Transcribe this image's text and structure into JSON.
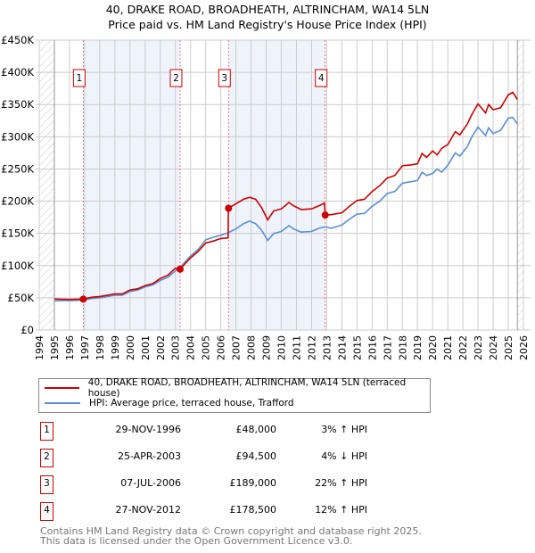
{
  "chart_data": {
    "type": "line",
    "title": "40, DRAKE ROAD, BROADHEATH, ALTRINCHAM, WA14 5LN",
    "subtitle": "Price paid vs. HM Land Registry's House Price Index (HPI)",
    "xlim": [
      1994,
      2026
    ],
    "ylim": [
      0,
      450000
    ],
    "y_ticks": [
      {
        "v": 0,
        "label": "£0"
      },
      {
        "v": 50000,
        "label": "£50K"
      },
      {
        "v": 100000,
        "label": "£100K"
      },
      {
        "v": 150000,
        "label": "£150K"
      },
      {
        "v": 200000,
        "label": "£200K"
      },
      {
        "v": 250000,
        "label": "£250K"
      },
      {
        "v": 300000,
        "label": "£300K"
      },
      {
        "v": 350000,
        "label": "£350K"
      },
      {
        "v": 400000,
        "label": "£400K"
      },
      {
        "v": 450000,
        "label": "£450K"
      }
    ],
    "x_ticks": [
      "1994",
      "1995",
      "1996",
      "1997",
      "1998",
      "1999",
      "2000",
      "2001",
      "2002",
      "2003",
      "2004",
      "2005",
      "2006",
      "2007",
      "2008",
      "2009",
      "2010",
      "2011",
      "2012",
      "2013",
      "2014",
      "2015",
      "2016",
      "2017",
      "2018",
      "2019",
      "2020",
      "2021",
      "2022",
      "2023",
      "2024",
      "2025",
      "2026"
    ],
    "grid": true,
    "colors": {
      "property": "#cc0000",
      "hpi": "#5b8fd4",
      "band": "#eef3fc",
      "marker": "#cc0000"
    },
    "series": [
      {
        "name": "40, DRAKE ROAD, BROADHEATH, ALTRINCHAM, WA14 5LN (terraced house)",
        "unit": "£K",
        "points": [
          [
            1995,
            48
          ],
          [
            1996,
            47.5
          ],
          [
            1996.9,
            48
          ],
          [
            1997.5,
            51
          ],
          [
            1998,
            52
          ],
          [
            1998.5,
            54
          ],
          [
            1999,
            56
          ],
          [
            1999.5,
            56
          ],
          [
            2000,
            62
          ],
          [
            2000.5,
            64
          ],
          [
            2001,
            69
          ],
          [
            2001.5,
            72
          ],
          [
            2002,
            80
          ],
          [
            2002.5,
            85
          ],
          [
            2003,
            96
          ],
          [
            2003.3,
            94.5
          ],
          [
            2004,
            112
          ],
          [
            2004.5,
            122
          ],
          [
            2005,
            135
          ],
          [
            2005.5,
            138
          ],
          [
            2006,
            142
          ],
          [
            2006.48,
            143
          ],
          [
            2006.5,
            189
          ],
          [
            2007,
            196
          ],
          [
            2007.5,
            203
          ],
          [
            2007.9,
            206
          ],
          [
            2008.3,
            203
          ],
          [
            2008.7,
            190
          ],
          [
            2009.1,
            171
          ],
          [
            2009.5,
            185
          ],
          [
            2010,
            188
          ],
          [
            2010.5,
            198
          ],
          [
            2010.8,
            193
          ],
          [
            2011.3,
            187
          ],
          [
            2012,
            188
          ],
          [
            2012.5,
            193
          ],
          [
            2012.85,
            197
          ],
          [
            2012.9,
            178.5
          ],
          [
            2013.3,
            179
          ],
          [
            2014,
            182
          ],
          [
            2014.5,
            192
          ],
          [
            2015,
            201
          ],
          [
            2015.5,
            203
          ],
          [
            2016,
            215
          ],
          [
            2016.5,
            224
          ],
          [
            2017,
            236
          ],
          [
            2017.5,
            240
          ],
          [
            2018,
            255
          ],
          [
            2018.5,
            256
          ],
          [
            2019,
            258
          ],
          [
            2019.3,
            274
          ],
          [
            2019.6,
            268
          ],
          [
            2020,
            278
          ],
          [
            2020.3,
            272
          ],
          [
            2020.6,
            282
          ],
          [
            2021,
            288
          ],
          [
            2021.5,
            308
          ],
          [
            2021.8,
            303
          ],
          [
            2022.3,
            320
          ],
          [
            2022.6,
            335
          ],
          [
            2023,
            351
          ],
          [
            2023.5,
            337
          ],
          [
            2023.7,
            350
          ],
          [
            2024,
            342
          ],
          [
            2024.5,
            345
          ],
          [
            2025,
            365
          ],
          [
            2025.3,
            369
          ],
          [
            2025.6,
            358
          ]
        ]
      },
      {
        "name": "HPI: Average price, terraced house, Trafford",
        "unit": "£K",
        "points": [
          [
            1995,
            45
          ],
          [
            1995.5,
            46
          ],
          [
            1996,
            45.5
          ],
          [
            1996.9,
            46.5
          ],
          [
            1997.5,
            49
          ],
          [
            1998,
            50
          ],
          [
            1998.5,
            52
          ],
          [
            1999,
            54
          ],
          [
            1999.5,
            54
          ],
          [
            2000,
            60
          ],
          [
            2000.5,
            62
          ],
          [
            2001,
            67
          ],
          [
            2001.5,
            70
          ],
          [
            2002,
            77
          ],
          [
            2002.5,
            82
          ],
          [
            2003,
            92
          ],
          [
            2003.3,
            97
          ],
          [
            2004,
            115
          ],
          [
            2004.5,
            125
          ],
          [
            2005,
            140
          ],
          [
            2005.5,
            144
          ],
          [
            2006,
            147
          ],
          [
            2006.5,
            151
          ],
          [
            2007,
            157
          ],
          [
            2007.5,
            165
          ],
          [
            2007.9,
            169
          ],
          [
            2008.3,
            165
          ],
          [
            2008.7,
            155
          ],
          [
            2009.1,
            139
          ],
          [
            2009.5,
            150
          ],
          [
            2010,
            153
          ],
          [
            2010.5,
            162
          ],
          [
            2010.8,
            157
          ],
          [
            2011.3,
            152
          ],
          [
            2012,
            153
          ],
          [
            2012.5,
            158
          ],
          [
            2012.9,
            160
          ],
          [
            2013.3,
            158
          ],
          [
            2014,
            163
          ],
          [
            2014.5,
            172
          ],
          [
            2015,
            180
          ],
          [
            2015.5,
            181
          ],
          [
            2016,
            192
          ],
          [
            2016.5,
            200
          ],
          [
            2017,
            212
          ],
          [
            2017.5,
            215
          ],
          [
            2018,
            228
          ],
          [
            2018.5,
            230
          ],
          [
            2019,
            232
          ],
          [
            2019.3,
            245
          ],
          [
            2019.6,
            240
          ],
          [
            2020,
            243
          ],
          [
            2020.3,
            250
          ],
          [
            2020.6,
            245
          ],
          [
            2021,
            256
          ],
          [
            2021.5,
            275
          ],
          [
            2021.8,
            270
          ],
          [
            2022.3,
            285
          ],
          [
            2022.6,
            300
          ],
          [
            2023,
            315
          ],
          [
            2023.5,
            302
          ],
          [
            2023.7,
            314
          ],
          [
            2024,
            305
          ],
          [
            2024.5,
            310
          ],
          [
            2025,
            329
          ],
          [
            2025.3,
            330
          ],
          [
            2025.6,
            320
          ]
        ]
      }
    ],
    "sales": [
      {
        "id": "1",
        "year": 1996.91,
        "price": 48000,
        "date": "29-NOV-1996",
        "price_label": "£48,000",
        "hpi_label": "3% ↑ HPI"
      },
      {
        "id": "2",
        "year": 2003.31,
        "price": 94500,
        "date": "25-APR-2003",
        "price_label": "£94,500",
        "hpi_label": "4% ↓ HPI"
      },
      {
        "id": "3",
        "year": 2006.51,
        "price": 189000,
        "date": "07-JUL-2006",
        "price_label": "£189,000",
        "hpi_label": "22% ↑ HPI"
      },
      {
        "id": "4",
        "year": 2012.9,
        "price": 178500,
        "date": "27-NOV-2012",
        "price_label": "£178,500",
        "hpi_label": "12% ↑ HPI"
      }
    ],
    "shaded_ranges": [
      [
        1996.91,
        2003.31
      ],
      [
        2006.51,
        2012.9
      ]
    ],
    "hatched_ranges": [
      [
        1994,
        1995
      ],
      [
        2025.6,
        2026
      ]
    ]
  },
  "footer": {
    "line1": "Contains HM Land Registry data © Crown copyright and database right 2025.",
    "line2": "This data is licensed under the Open Government Licence v3.0."
  }
}
